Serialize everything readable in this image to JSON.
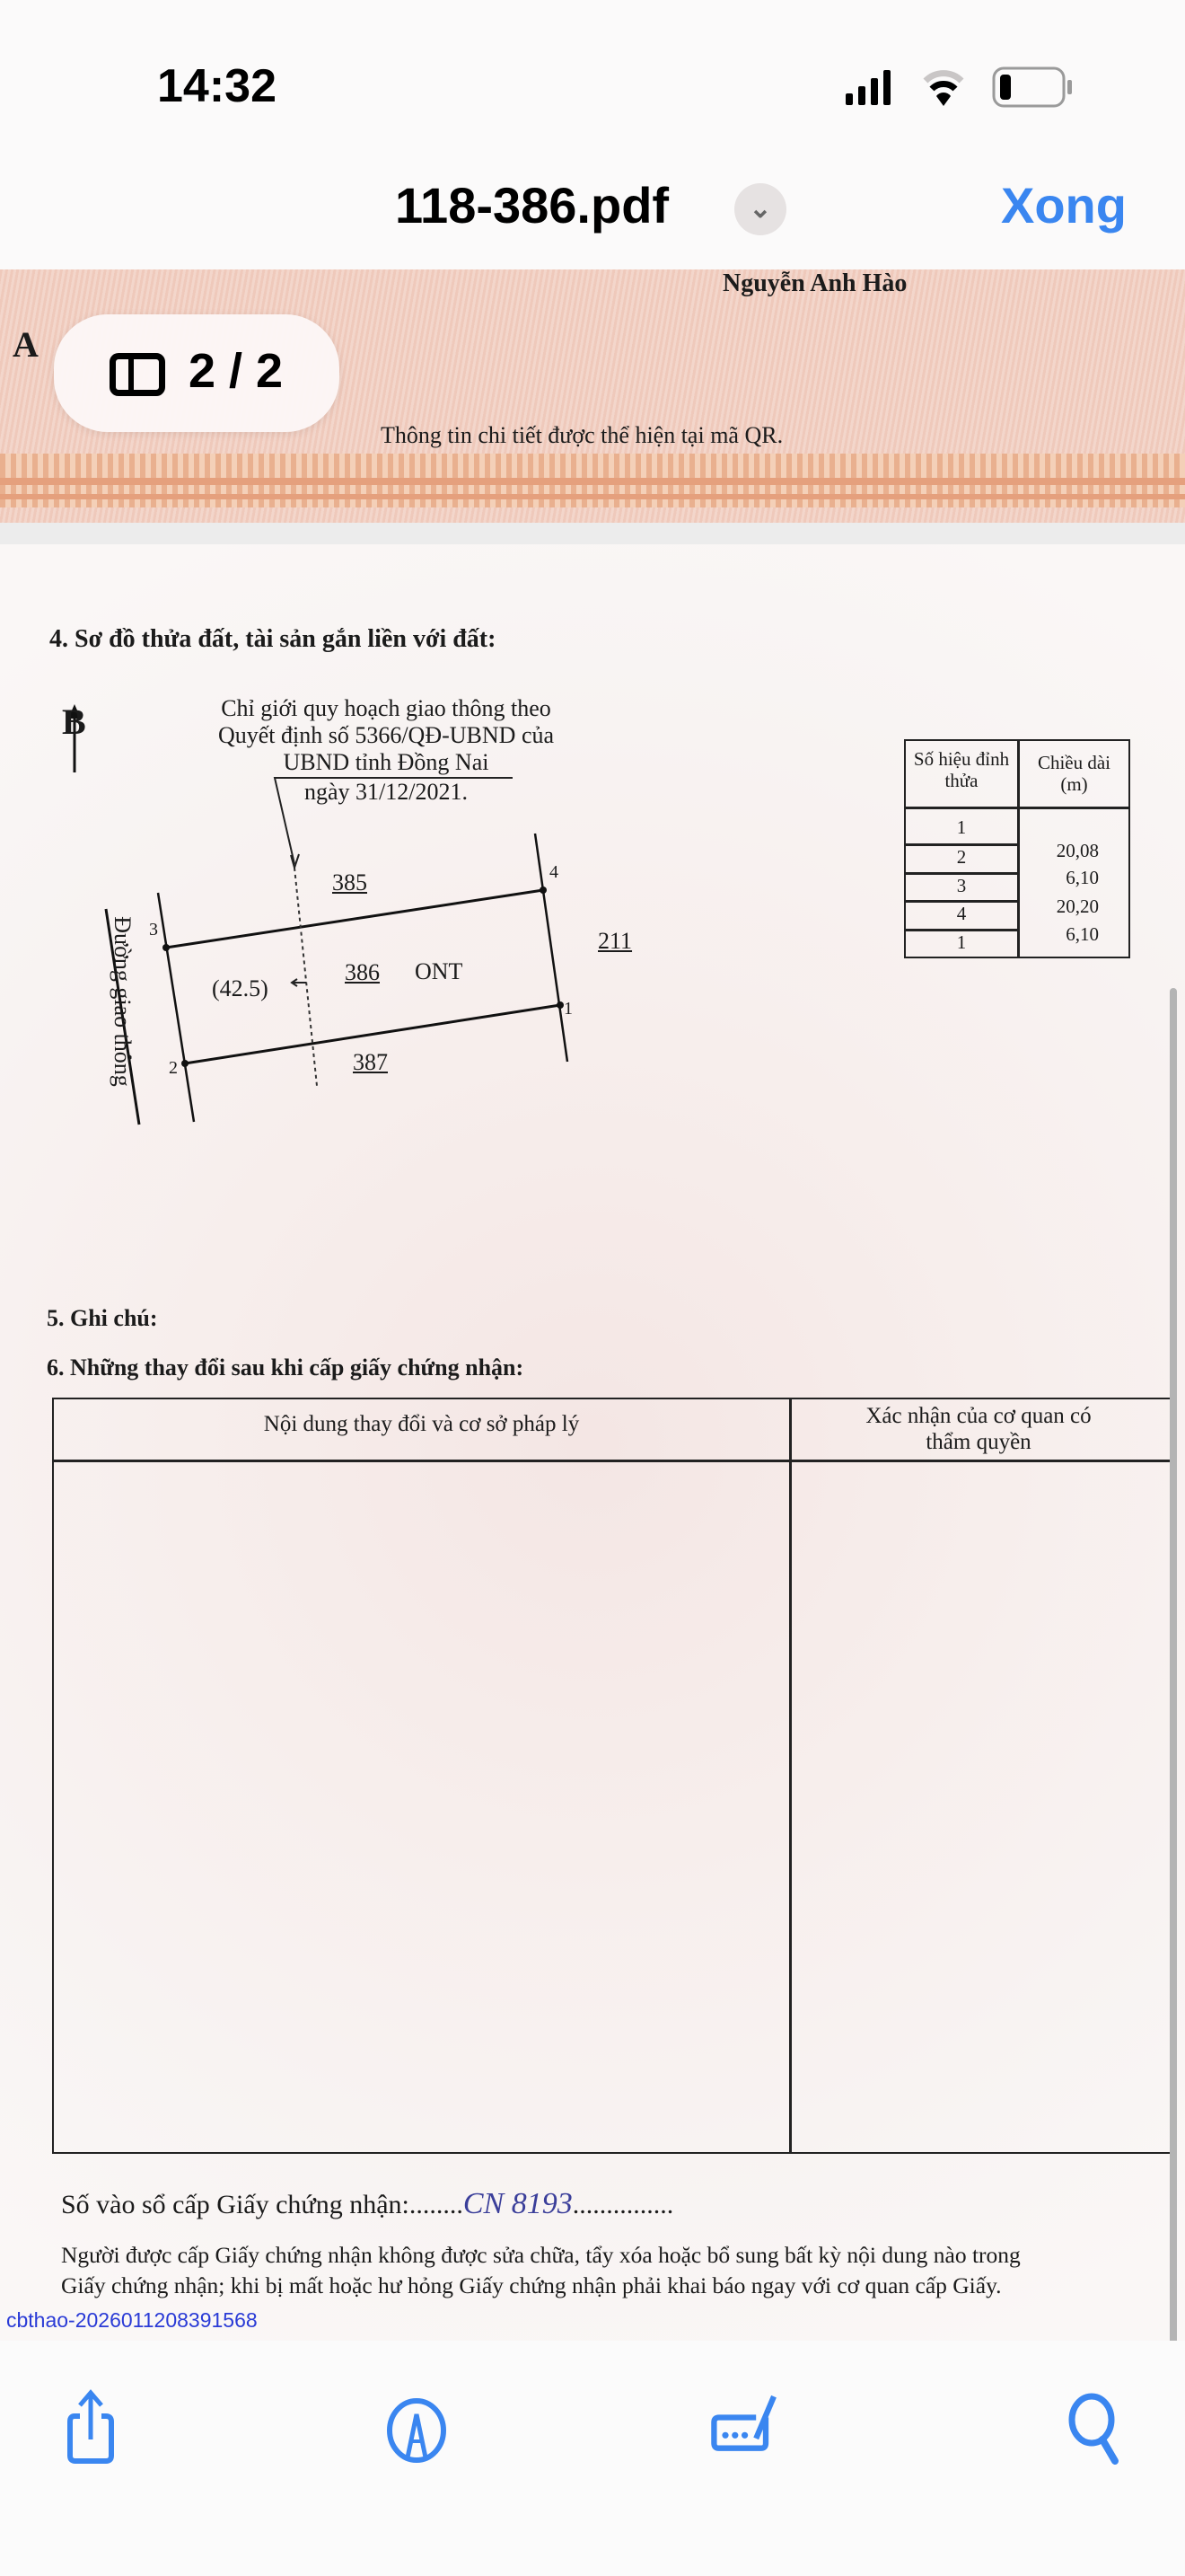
{
  "status_bar": {
    "time": "14:32",
    "signal_icon": "cellular-signal-icon",
    "wifi_icon": "wifi-icon",
    "battery_icon": "battery-low-icon"
  },
  "nav": {
    "title": "118-386.pdf",
    "title_menu_icon": "chevron-down-icon",
    "done_label": "Xong",
    "accent": "#3a86f0"
  },
  "page_indicator": {
    "icon": "sidebar-thumbnails-icon",
    "label": "2 / 2"
  },
  "page1": {
    "signer": "Nguyễn Anh Hào",
    "qr_note": "Thông tin chi tiết được thể hiện tại mã QR.",
    "left_fragment": "A"
  },
  "page2": {
    "section4_title": "4. Sơ đồ thửa đất, tài sản gắn liền với đất:",
    "diagram": {
      "north_label": "B",
      "note_lines": [
        "Chỉ giới quy hoạch giao thông theo",
        "Quyết định số 5366/QĐ-UBND của",
        "UBND tỉnh Đồng Nai",
        "ngày 31/12/2021."
      ],
      "road_label": "Đường giao thông",
      "parcel_north": "385",
      "parcel_east": "211",
      "parcel_main": "386",
      "land_type": "ONT",
      "parcel_south": "387",
      "setback": "(42.5)",
      "vertices": [
        "1",
        "2",
        "3",
        "4"
      ]
    },
    "vertex_table": {
      "headers": [
        "Số hiệu đỉnh thửa",
        "Chiều dài (m)"
      ],
      "vertices": [
        "1",
        "2",
        "3",
        "4",
        "1"
      ],
      "lengths": [
        "20,08",
        "6,10",
        "20,20",
        "6,10"
      ]
    },
    "section5_title": "5. Ghi chú:",
    "section6_title": "6. Những thay đổi sau khi cấp giấy chứng nhận:",
    "changes_table": {
      "headers": [
        "Nội dung thay đổi và cơ sở pháp lý",
        "Xác nhận của cơ quan có thẩm quyền"
      ]
    },
    "register_label": "Số vào sổ cấp Giấy chứng nhận:",
    "register_dots_1": "........",
    "register_value": "CN  8193",
    "register_dots_2": "...............",
    "warning_line1": "Người được cấp Giấy chứng nhận không được sửa chữa, tẩy xóa hoặc bổ sung bất kỳ nội dung nào trong",
    "warning_line2": "Giấy chứng nhận; khi bị mất hoặc hư hỏng Giấy chứng nhận phải khai báo ngay với cơ quan cấp Giấy.",
    "stamp_code": "cbthao-20260112083915​68"
  },
  "toolbar": {
    "share_icon": "share-icon",
    "markup_icon": "markup-pen-icon",
    "form_icon": "fill-sign-icon",
    "search_icon": "search-icon"
  }
}
